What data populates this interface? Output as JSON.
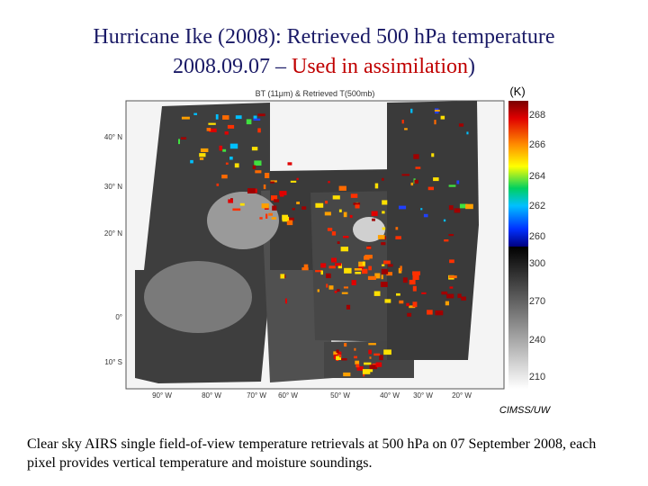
{
  "slide": {
    "title_line1": "Hurricane Ike (2008): Retrieved 500 hPa temperature",
    "title_line2_start": "2008.09.07 –",
    "title_line2_red": "Used in assimilation",
    "title_line2_end": ")",
    "map": {
      "title": "BT (11μm) & Retrieved T(500mb)",
      "lat_labels": [
        "40° N",
        "30° N",
        "20° N",
        "0°",
        "10° S"
      ],
      "lon_labels": [
        "90° W",
        "80° W",
        "70° W",
        "60° W",
        "50° W",
        "40° W",
        "30° W",
        "20° W"
      ],
      "colorbar_unit": "(K)",
      "colorbar_labels": [
        "268",
        "266",
        "264",
        "262",
        "260",
        "300",
        "270",
        "240",
        "210"
      ],
      "credit": "CIMSS/UW"
    },
    "caption": "Clear sky AIRS single field-of-view temperature retrievals at 500 hPa on 07 September 2008, each pixel provides vertical temperature and moisture soundings."
  }
}
